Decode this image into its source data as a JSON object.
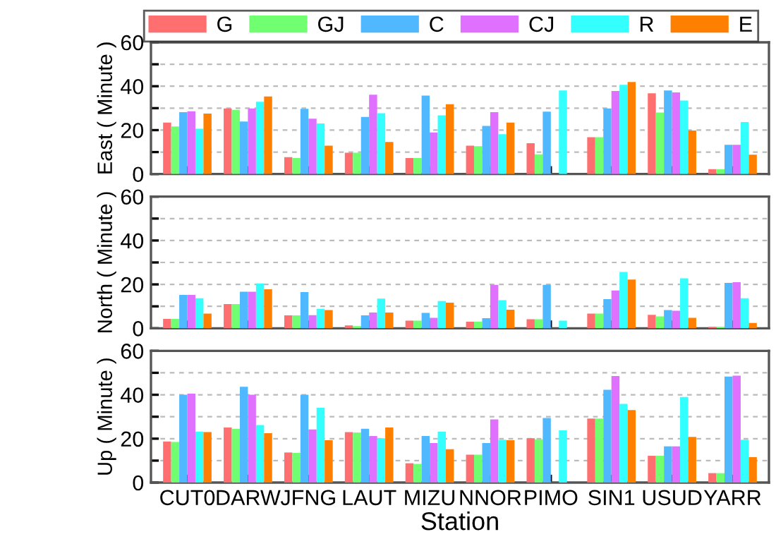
{
  "chart_data": [
    {
      "type": "bar",
      "ylabel": "East ( Minute )",
      "categories": [
        null,
        null,
        null,
        null,
        null,
        null,
        null,
        null,
        null,
        null
      ],
      "ylim": [
        0,
        60
      ],
      "yticks": [
        0,
        {
          "value": 10,
          "label": null
        },
        20,
        {
          "value": 30,
          "label": null
        },
        40,
        {
          "value": 50,
          "label": null
        },
        60
      ],
      "grid": "y",
      "legend": "top right",
      "tick_labels": "y",
      "series": [
        {
          "name": "G",
          "color": "#ff6f6f",
          "values": [
            23.4,
            29.9,
            7.7,
            9.7,
            7.3,
            12.9,
            14,
            16.8,
            36.8,
            2.2
          ]
        },
        {
          "name": "GJ",
          "color": "#70ff70",
          "values": [
            21.7,
            29.2,
            7.3,
            9.7,
            7.3,
            12.7,
            9,
            16.8,
            28,
            2.2
          ]
        },
        {
          "name": "C",
          "color": "#4fb8ff",
          "values": [
            28.2,
            23.9,
            29.7,
            26,
            35.7,
            21.9,
            28.4,
            29.9,
            38.1,
            13.3
          ]
        },
        {
          "name": "CJ",
          "color": "#e070ff",
          "values": [
            28.6,
            29.9,
            25.2,
            36.1,
            18.9,
            28.2,
            null,
            37.8,
            37.2,
            13.3
          ]
        },
        {
          "name": "R",
          "color": "#33ffff",
          "values": [
            20.6,
            32.9,
            23,
            27.7,
            26.7,
            18.1,
            38.1,
            40.6,
            33.5,
            23.7
          ]
        },
        {
          "name": "E",
          "color": "#ff8000",
          "values": [
            27.5,
            35.3,
            12.9,
            14.6,
            31.8,
            23.4,
            null,
            41.9,
            19.8,
            8.8
          ]
        }
      ]
    },
    {
      "type": "bar",
      "ylabel": "North ( Minute )",
      "categories": [
        null,
        null,
        null,
        null,
        null,
        null,
        null,
        null,
        null,
        null
      ],
      "ylim": [
        0,
        60
      ],
      "yticks": [
        0,
        {
          "value": 10,
          "label": null
        },
        20,
        {
          "value": 30,
          "label": null
        },
        40,
        {
          "value": 50,
          "label": null
        },
        60
      ],
      "grid": "y",
      "tick_labels": "y",
      "series": [
        {
          "color": "#ff6f6f",
          "values": [
            4.3,
            11,
            5.9,
            1.3,
            3.5,
            3,
            4.1,
            6.7,
            6.1,
            0.7
          ]
        },
        {
          "color": "#70ff70",
          "values": [
            4.3,
            11,
            5.9,
            1,
            3.5,
            3,
            4.1,
            6.7,
            5.4,
            0.7
          ]
        },
        {
          "color": "#4fb8ff",
          "values": [
            15.2,
            16.7,
            16.5,
            5.9,
            7,
            4.6,
            19.8,
            13.3,
            8.3,
            20.7
          ]
        },
        {
          "color": "#e070ff",
          "values": [
            15.2,
            16.7,
            6,
            7.2,
            4.8,
            19.8,
            null,
            17.2,
            8,
            21
          ]
        },
        {
          "color": "#33ffff",
          "values": [
            13.7,
            20.4,
            8.9,
            13.5,
            12.4,
            12.8,
            3.5,
            25.7,
            22.8,
            13.7
          ]
        },
        {
          "color": "#ff8000",
          "values": [
            6.7,
            17.8,
            8.3,
            7.2,
            11.7,
            8.5,
            null,
            22.2,
            4.8,
            2.4
          ]
        }
      ]
    },
    {
      "type": "bar",
      "xlabel": "Station",
      "ylabel": "Up ( Minute )",
      "categories": [
        "CUT0",
        "DARW",
        "JFNG",
        "LAUT",
        "MIZU",
        "NNOR",
        "PIMO",
        "SIN1",
        "USUD",
        "YARR"
      ],
      "ylim": [
        0,
        60
      ],
      "yticks": [
        0,
        {
          "value": 10,
          "label": null
        },
        20,
        {
          "value": 30,
          "label": null
        },
        40,
        {
          "value": 50,
          "label": null
        },
        60
      ],
      "grid": "y",
      "series": [
        {
          "color": "#ff6f6f",
          "values": [
            18.7,
            25.1,
            13.7,
            23,
            8.8,
            12.7,
            20.2,
            29.2,
            12.2,
            4.3
          ]
        },
        {
          "color": "#70ff70",
          "values": [
            18.5,
            24.5,
            13.5,
            22.8,
            8.5,
            12.7,
            19.7,
            29.2,
            12.2,
            4.3
          ]
        },
        {
          "color": "#4fb8ff",
          "values": [
            40,
            43.6,
            40,
            24.5,
            21.2,
            18,
            29.4,
            42.3,
            16.5,
            48.3
          ]
        },
        {
          "color": "#e070ff",
          "values": [
            40.5,
            40,
            24.2,
            21.2,
            18,
            28.8,
            null,
            48.5,
            16.5,
            48.7
          ]
        },
        {
          "color": "#33ffff",
          "values": [
            23.2,
            26.2,
            34.1,
            20.2,
            23.2,
            19.5,
            23.8,
            35.8,
            39,
            19.5
          ]
        },
        {
          "color": "#ff8000",
          "values": [
            23,
            22.5,
            19.3,
            25.1,
            15.2,
            19.3,
            null,
            33,
            20.8,
            11.6
          ]
        }
      ]
    }
  ]
}
